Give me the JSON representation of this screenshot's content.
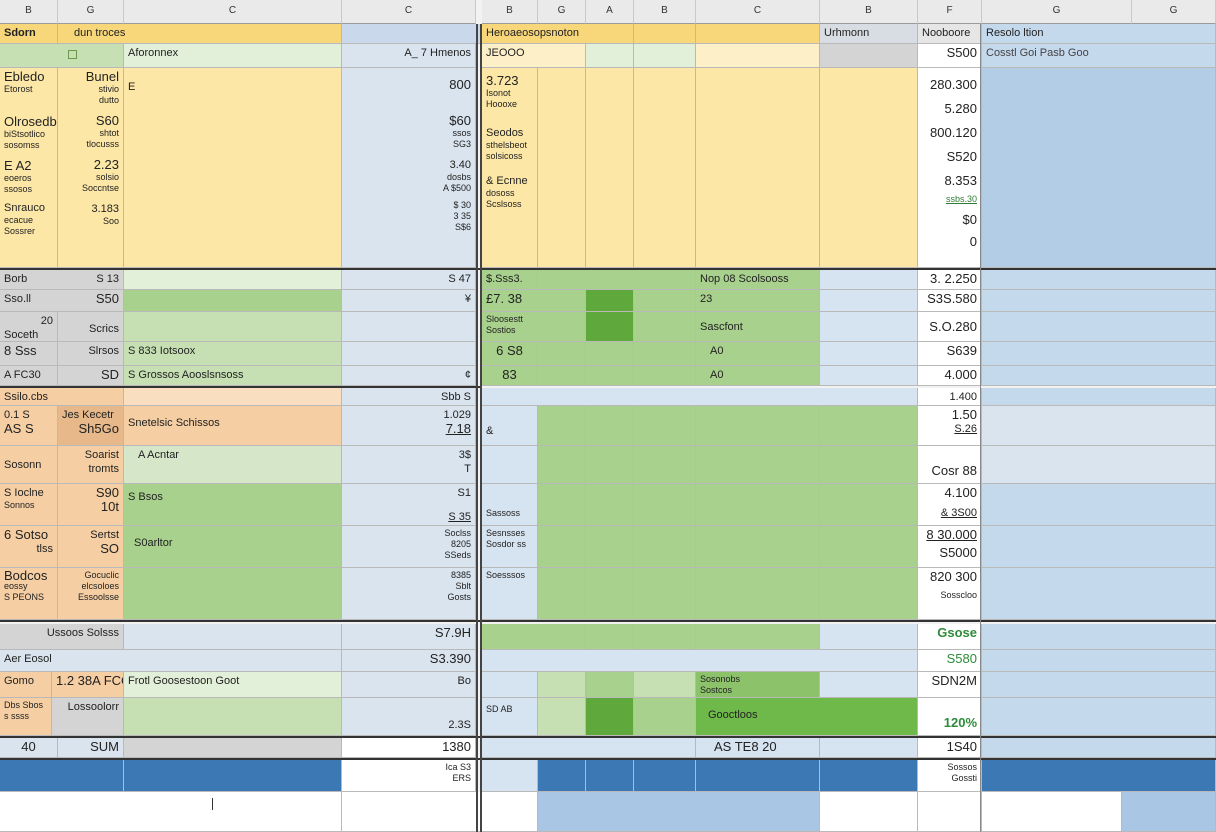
{
  "colors": {
    "header_bg": "#eaeaea",
    "yellow": "#fce7a6",
    "yellow_light": "#fdf0c8",
    "blue": "#d6e3f0",
    "blue_mid": "#b4cde6",
    "blue_dark": "#3c78b4",
    "green": "#a8d18d",
    "green_mid": "#8cc26a",
    "green_dark": "#5fa83c",
    "orange": "#f5cfa3",
    "orange_light": "#f9dfc0",
    "grey": "#d4d4d4"
  },
  "column_headers": [
    "B",
    "G",
    "C",
    "C",
    "B",
    "G",
    "A",
    "B",
    "C",
    "B",
    "F",
    "G",
    "G"
  ],
  "rows": {
    "header": {
      "a": "Sdorn",
      "b": "dun troces",
      "d": "Heroaeosopsnoton",
      "h": "Urhmonn",
      "i": "Nooboore",
      "j": "Resolo ltion"
    },
    "row1": {
      "b": "Aforonnex",
      "c": "A_ 7 Hmenos",
      "d": "JEOOO",
      "i": "S500",
      "j": "Cosstl Goi Pasb Goo"
    },
    "row2": {
      "a1": "Ebledo",
      "a2": "Etorost",
      "b1": "Bunel",
      "b2": "stivio",
      "b3": "dutto",
      "bsym": "E",
      "c": "800",
      "d1": "3.723",
      "d2": "Isonot",
      "d3": "Hoooxe",
      "i1": "280.300",
      "i2": "5.280"
    },
    "row3": {
      "a1": "Olrosedb",
      "a2": "biStsotlico",
      "a3": "sosomss",
      "b1": "S60",
      "b2": "shtot",
      "b3": "tlocusss",
      "c1": "$60",
      "c2": "ssos",
      "c3": "SG3",
      "d1": "Seodos",
      "d2": "sthelsbeot",
      "d3": "solsicoss",
      "i1": "800.120",
      "i2": "S520"
    },
    "row4": {
      "a1": "E  A2",
      "a2": "eoeros",
      "a3": "ssosos",
      "b1": "2.23",
      "b2": "solsio",
      "b3": "Soccntse",
      "c1": "3.40",
      "c2": "dosbs",
      "c3": "A $500",
      "d1": "& Ecnne",
      "d2": "dososs",
      "d3": "Scslsoss",
      "i1": "8.353",
      "i2": "ssbs.30"
    },
    "row5": {
      "a1": "Snrauco",
      "a2": "ecacue",
      "a3": "Sossrer",
      "b1": "3.183",
      "b2": "Soo",
      "c1": "$ 30",
      "c2": "3 35",
      "c3": "S$6",
      "i": "$0",
      "i2": "0"
    },
    "row6": {
      "a": "Borb",
      "b": "S 13",
      "c": "S 47",
      "d": "$.Sss3.",
      "g": "Nop 08  Scolsooss",
      "i": "3. 2.250"
    },
    "row7": {
      "a": "Sso.ll",
      "b": "S50",
      "c": "¥",
      "d": "£7. 38",
      "g": "23",
      "i": "S3S.580"
    },
    "row8": {
      "a1": "20",
      "a2": "Soceth",
      "b": "Scrics",
      "d1": "Sloosestt",
      "d2": "Sostios",
      "g": "Sascfont",
      "i": "S.O.280"
    },
    "row9": {
      "a1": "8 Sss",
      "b": "Slrsos",
      "bf": "S 833 Iotsoox",
      "d": "6 S8",
      "g": "A0",
      "i": "S639"
    },
    "row10": {
      "a": "A  FC30",
      "b": "SD",
      "bf": "S Grossos Aooslsnsoss",
      "c": "¢",
      "d": "83",
      "g": "A0",
      "i": "4.000"
    },
    "row11": {
      "a": "Ssilo.cbs",
      "c": "Sbb S",
      "i": "1.400"
    },
    "row12": {
      "a1": "0.1 S",
      "a2": "AS S",
      "b": "Jes Kecetr",
      "b2": "Sh5Go",
      "bf": "Snetelsic Schissos",
      "c1": "1.029",
      "c2": "7.18",
      "d": "&",
      "i1": "1.50",
      "i2": "S.26"
    },
    "row13": {
      "a": "Sosonn",
      "b1": "Soarist",
      "b2": "tromts",
      "bf": "A Acntar",
      "c1": "3$",
      "c2": "T",
      "i": "Cosr 88"
    },
    "row14": {
      "a1": "S  Ioclne",
      "a2": "Sonnos",
      "b1": "S90",
      "b2": "10t",
      "bf": "S  Bsos",
      "c1": "S1",
      "c2": "S 35",
      "d": "Sassoss",
      "i1": "4.100",
      "i2": "& 3S00"
    },
    "row15": {
      "a1": "6 Sotso",
      "a2": "tlss",
      "b1": "Sertst",
      "b2": "SO",
      "bf": "S0arltor",
      "c1": "Soclss",
      "c2": "8205",
      "c3": "SSeds",
      "d1": "Sesnsses",
      "d2": "Sosdor ss",
      "i1": "8 30.000",
      "i2": "S5000"
    },
    "row16": {
      "a1": "Bodcos",
      "a2": "eossy",
      "a3": "S PEONS",
      "b1": "Gocuclic",
      "b2": "elcsoloes",
      "b3": "Essoolsse",
      "c1": "8385",
      "c2": "Sblt",
      "c3": "Gosts",
      "d": "Soesssos",
      "i1": "820 300",
      "i2": "Sosscloo"
    },
    "row17": {
      "a": "Ussoos Solsss",
      "c": "S7.9H",
      "i": "Gsose"
    },
    "row18": {
      "a": "Aer Eosol",
      "c": "S3.390",
      "i": "S580"
    },
    "row19": {
      "a": "Gomo",
      "b": "1.2 38A FCO",
      "bf": "Frotl Goosestoon Goot",
      "c": "Bo",
      "g1": "Sosonobs",
      "g2": "Sostcos",
      "i": "SDN2M"
    },
    "row20": {
      "a1": "Dbs Sbos",
      "a2": "s ssss",
      "b": "Lossoolorr",
      "c": "2.3S",
      "d": "SD AB",
      "g": "Gooctloos",
      "i": "120%"
    },
    "row21": {
      "a": "40",
      "b": "SUM",
      "c": "1380",
      "g": "AS TE8 20",
      "i": "1S40"
    },
    "row22": {
      "c1": "Ica S3",
      "c2": "ERS",
      "i1": "Sossos",
      "i2": "Gossti"
    }
  }
}
